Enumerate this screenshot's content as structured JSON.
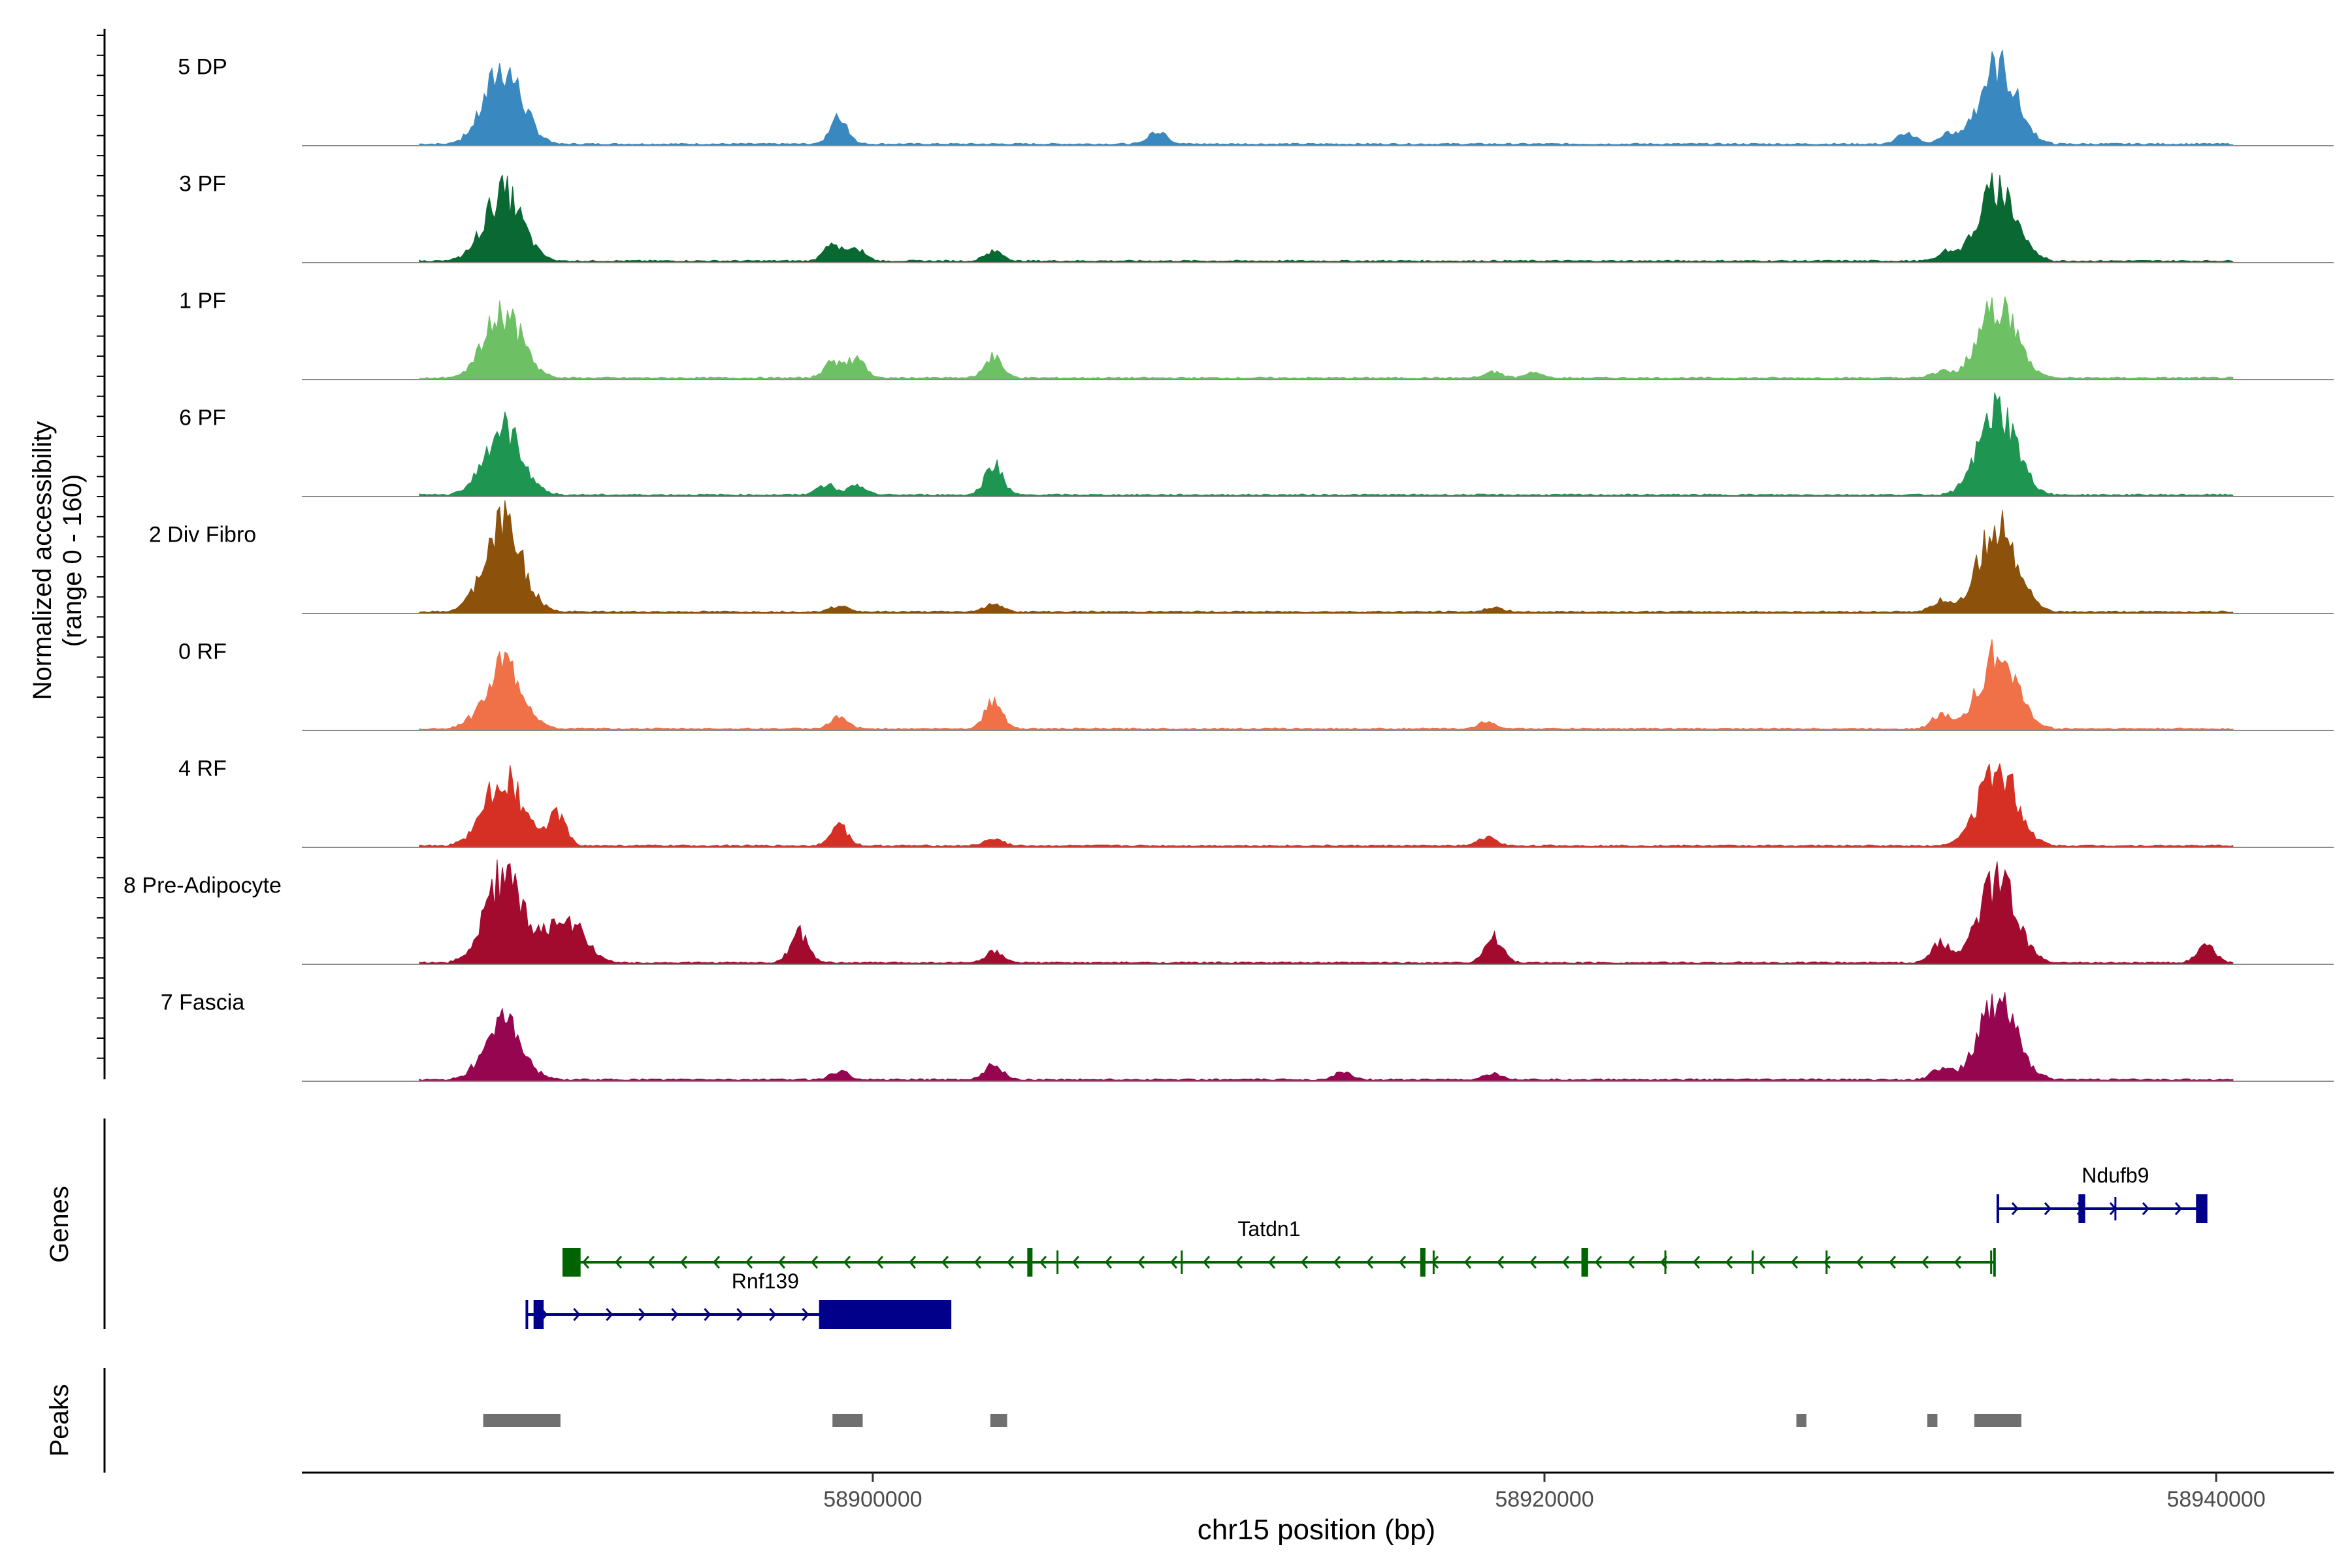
{
  "chart_data": {
    "type": "area",
    "title": "",
    "region": {
      "chrom": "chr15",
      "start": 58883000,
      "end": 58943500
    },
    "ylabel_line1": "Normalized accessibility",
    "ylabel_line2": "(range 0 - 160)",
    "ylim": [
      0,
      160
    ],
    "xlabel": "chr15 position (bp)",
    "x_ticks": [
      {
        "value": 58900000,
        "label": "58900000"
      },
      {
        "value": 58920000,
        "label": "58920000"
      },
      {
        "value": 58940000,
        "label": "58940000"
      }
    ],
    "panel_labels": {
      "genes": "Genes",
      "peaks": "Peaks"
    },
    "tracks": [
      {
        "label": "5 DP",
        "color": "#3a88c0",
        "peaks": [
          {
            "pos": 58889000,
            "h": 150
          },
          {
            "pos": 58899000,
            "h": 52
          },
          {
            "pos": 58908500,
            "h": 28
          },
          {
            "pos": 58933500,
            "h": 155
          },
          {
            "pos": 58930800,
            "h": 22
          },
          {
            "pos": 58932000,
            "h": 18
          }
        ]
      },
      {
        "label": "3 PF",
        "color": "#0a6932",
        "peaks": [
          {
            "pos": 58889000,
            "h": 135
          },
          {
            "pos": 58898800,
            "h": 30
          },
          {
            "pos": 58899500,
            "h": 28
          },
          {
            "pos": 58903600,
            "h": 20
          },
          {
            "pos": 58933500,
            "h": 145
          },
          {
            "pos": 58932000,
            "h": 18
          }
        ]
      },
      {
        "label": "1 PF",
        "color": "#6dc064",
        "peaks": [
          {
            "pos": 58889000,
            "h": 130
          },
          {
            "pos": 58898800,
            "h": 30
          },
          {
            "pos": 58899500,
            "h": 38
          },
          {
            "pos": 58903600,
            "h": 42
          },
          {
            "pos": 58918500,
            "h": 12
          },
          {
            "pos": 58919700,
            "h": 10
          },
          {
            "pos": 58931800,
            "h": 14
          },
          {
            "pos": 58933500,
            "h": 145
          }
        ]
      },
      {
        "label": "6 PF",
        "color": "#1e9550",
        "peaks": [
          {
            "pos": 58889000,
            "h": 130
          },
          {
            "pos": 58898600,
            "h": 22
          },
          {
            "pos": 58899500,
            "h": 18
          },
          {
            "pos": 58903600,
            "h": 60
          },
          {
            "pos": 58933500,
            "h": 165
          }
        ]
      },
      {
        "label": "2 Div Fibro",
        "color": "#8c510a",
        "peaks": [
          {
            "pos": 58889000,
            "h": 175
          },
          {
            "pos": 58899000,
            "h": 12
          },
          {
            "pos": 58903600,
            "h": 16
          },
          {
            "pos": 58918500,
            "h": 8
          },
          {
            "pos": 58931800,
            "h": 22
          },
          {
            "pos": 58933500,
            "h": 175
          }
        ]
      },
      {
        "label": "0 RF",
        "color": "#f07048",
        "peaks": [
          {
            "pos": 58889000,
            "h": 125
          },
          {
            "pos": 58899000,
            "h": 22
          },
          {
            "pos": 58903600,
            "h": 58
          },
          {
            "pos": 58918300,
            "h": 14
          },
          {
            "pos": 58931800,
            "h": 30
          },
          {
            "pos": 58933500,
            "h": 145
          }
        ]
      },
      {
        "label": "4 RF",
        "color": "#d63024",
        "peaks": [
          {
            "pos": 58889000,
            "h": 138
          },
          {
            "pos": 58890600,
            "h": 60
          },
          {
            "pos": 58899000,
            "h": 38
          },
          {
            "pos": 58903600,
            "h": 14
          },
          {
            "pos": 58918300,
            "h": 16
          },
          {
            "pos": 58933500,
            "h": 155
          }
        ]
      },
      {
        "label": "8 Pre-Adipocyte",
        "color": "#a30b2e",
        "peaks": [
          {
            "pos": 58889000,
            "h": 175
          },
          {
            "pos": 58890800,
            "h": 90
          },
          {
            "pos": 58897800,
            "h": 58
          },
          {
            "pos": 58903600,
            "h": 20
          },
          {
            "pos": 58918500,
            "h": 50
          },
          {
            "pos": 58931800,
            "h": 40
          },
          {
            "pos": 58933500,
            "h": 160
          },
          {
            "pos": 58939700,
            "h": 32
          }
        ]
      },
      {
        "label": "7 Fascia",
        "color": "#960550",
        "peaks": [
          {
            "pos": 58889000,
            "h": 110
          },
          {
            "pos": 58899000,
            "h": 18
          },
          {
            "pos": 58903600,
            "h": 30
          },
          {
            "pos": 58914000,
            "h": 14
          },
          {
            "pos": 58918500,
            "h": 12
          },
          {
            "pos": 58931800,
            "h": 22
          },
          {
            "pos": 58933500,
            "h": 165
          }
        ]
      }
    ],
    "genes": [
      {
        "name": "Tatdn1",
        "strand": "-",
        "color": "#006400",
        "start": 58890800,
        "end": 58933400,
        "exons": [
          [
            58890800,
            58891300
          ],
          [
            58904600,
            58904750
          ],
          [
            58916300,
            58916400
          ],
          [
            58921100,
            58921300
          ]
        ],
        "introns_marks": [
          58905500,
          58909200,
          58916700,
          58923600,
          58926200,
          58928400,
          58933300
        ]
      },
      {
        "name": "Rnf139",
        "strand": "+",
        "color": "#00008b",
        "start": 58889700,
        "end": 58902300,
        "exons": [
          [
            58889900,
            58890200
          ],
          [
            58898400,
            58902300
          ]
        ]
      },
      {
        "name": "Ndufb9",
        "strand": "+",
        "color": "#00008b",
        "start": 58933500,
        "end": 58939700,
        "exons": [
          [
            58935900,
            58936100
          ],
          [
            58939400,
            58939700
          ]
        ],
        "introns_marks": [
          58937000
        ]
      }
    ],
    "peak_regions": [
      [
        58888400,
        58890700
      ],
      [
        58898800,
        58899700
      ],
      [
        58903500,
        58904000
      ],
      [
        58927500,
        58927800
      ],
      [
        58931400,
        58931700
      ],
      [
        58932800,
        58934200
      ]
    ]
  }
}
